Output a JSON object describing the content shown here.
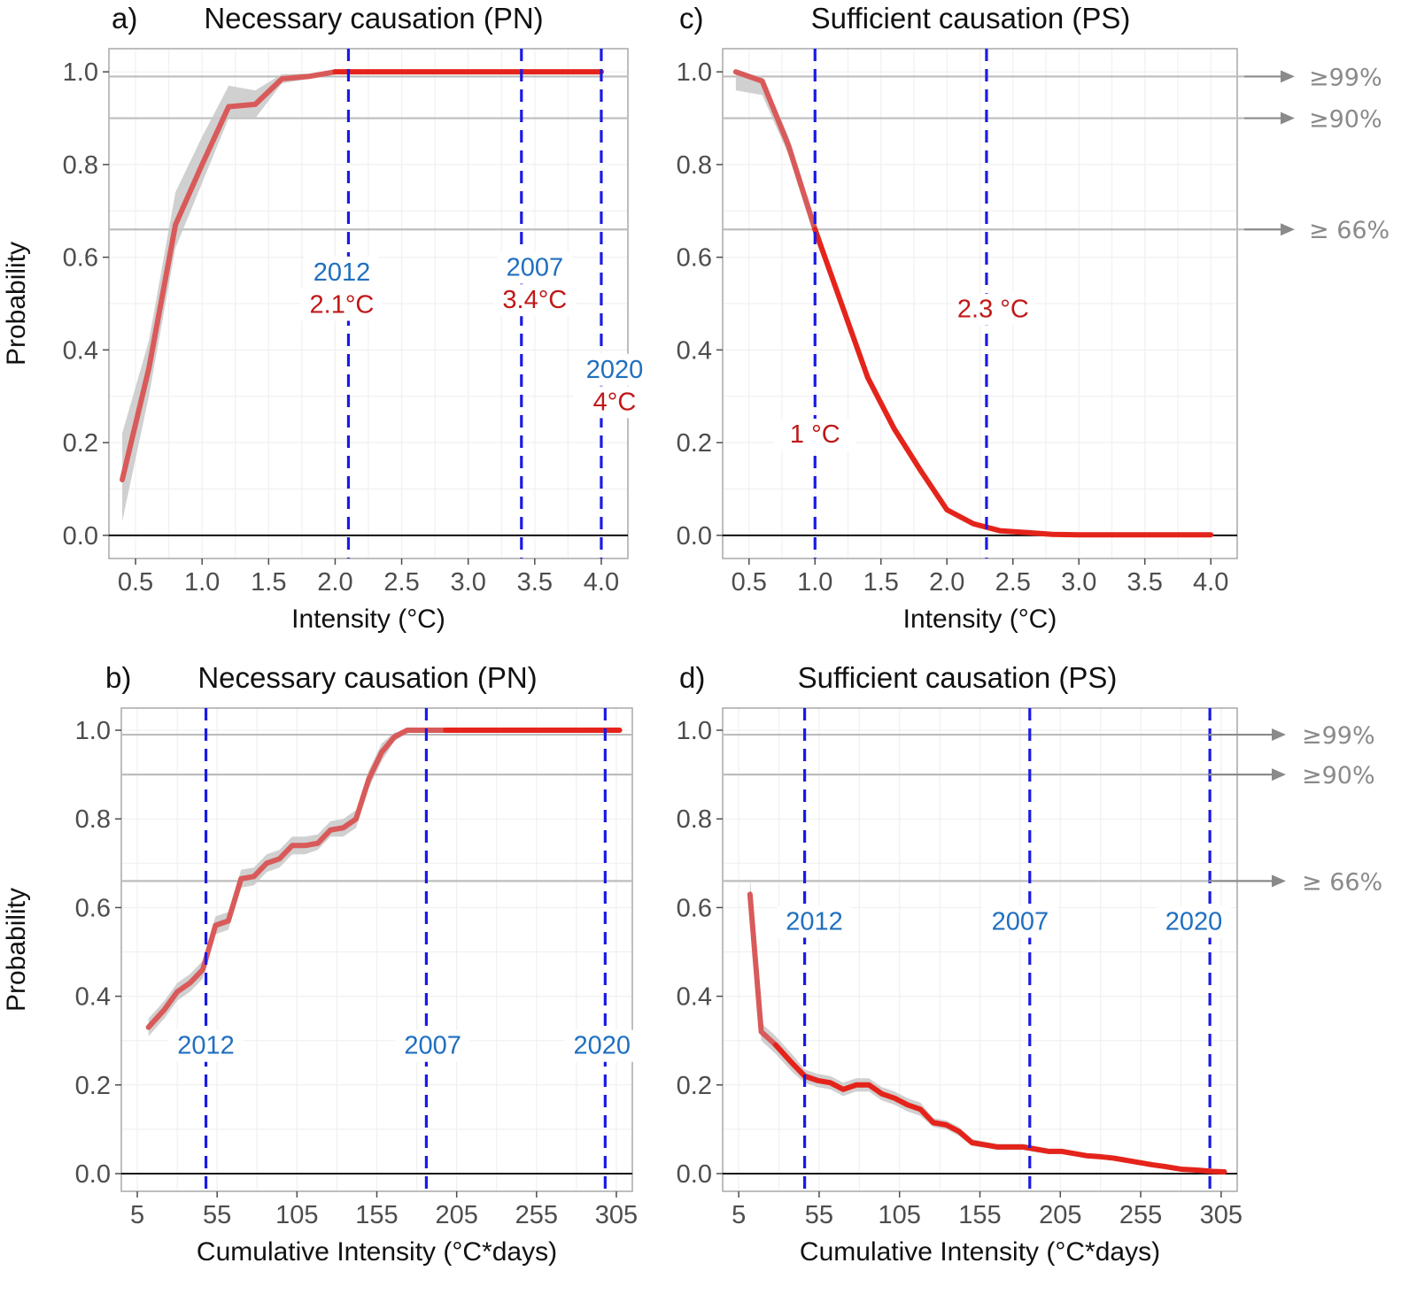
{
  "colors": {
    "line_red": "#e4241b",
    "line_pink": "#d95a5a",
    "ribbon": "#c8c8c8",
    "vline": "#1a1ae6",
    "hline": "#bdbdbd",
    "year_text": "#1f6fc0",
    "temp_text": "#c01818",
    "threshold_text": "#8a8a8a"
  },
  "chart_data": [
    {
      "id": "a",
      "type": "line",
      "panel_label": "a)",
      "title": "Necessary causation (PN)",
      "xlabel": "Intensity (°C)",
      "ylabel": "Probability",
      "xlim": [
        0.3,
        4.2
      ],
      "ylim": [
        -0.05,
        1.05
      ],
      "xticks": [
        0.5,
        1.0,
        1.5,
        2.0,
        2.5,
        3.0,
        3.5,
        4.0
      ],
      "xtick_labels": [
        "0.5",
        "1.0",
        "1.5",
        "2.0",
        "2.5",
        "3.0",
        "3.5",
        "4.0"
      ],
      "yticks": [
        0.0,
        0.2,
        0.4,
        0.6,
        0.8,
        1.0
      ],
      "ytick_labels": [
        "0.0",
        "0.2",
        "0.4",
        "0.6",
        "0.8",
        "1.0"
      ],
      "hlines": [
        0.99,
        0.9,
        0.66
      ],
      "series": [
        {
          "name": "PN",
          "x": [
            0.4,
            0.6,
            0.8,
            1.0,
            1.2,
            1.4,
            1.6,
            1.8,
            2.0,
            2.2,
            2.4,
            2.6,
            2.8,
            3.0,
            3.2,
            3.4,
            3.6,
            3.8,
            4.0
          ],
          "y": [
            0.12,
            0.36,
            0.67,
            0.8,
            0.925,
            0.93,
            0.985,
            0.99,
            1.0,
            1.0,
            1.0,
            1.0,
            1.0,
            1.0,
            1.0,
            1.0,
            1.0,
            1.0,
            1.0
          ],
          "lower": [
            0.03,
            0.3,
            0.62,
            0.76,
            0.9,
            0.9,
            0.975,
            0.985,
            0.997,
            1.0,
            1.0,
            1.0,
            1.0,
            1.0,
            1.0,
            1.0,
            1.0,
            1.0,
            1.0
          ],
          "upper": [
            0.22,
            0.42,
            0.74,
            0.86,
            0.97,
            0.96,
            0.995,
            0.996,
            1.0,
            1.0,
            1.0,
            1.0,
            1.0,
            1.0,
            1.0,
            1.0,
            1.0,
            1.0,
            1.0
          ],
          "split_x": 2.0
        }
      ],
      "vlines": [
        {
          "x": 2.1,
          "year": "2012",
          "value": "2.1°C",
          "lx": 2.05,
          "year_y": 0.55,
          "value_y": 0.48
        },
        {
          "x": 3.4,
          "year": "2007",
          "value": "3.4°C",
          "lx": 3.5,
          "year_y": 0.56,
          "value_y": 0.49
        },
        {
          "x": 4.0,
          "year": "2020",
          "value": "4°C",
          "lx": 4.1,
          "year_y": 0.34,
          "value_y": 0.27
        }
      ],
      "threshold_labels": []
    },
    {
      "id": "c",
      "type": "line",
      "panel_label": "c)",
      "title": "Sufficient  causation (PS)",
      "xlabel": "Intensity (°C)",
      "ylabel": "",
      "xlim": [
        0.3,
        4.2
      ],
      "ylim": [
        -0.05,
        1.05
      ],
      "xticks": [
        0.5,
        1.0,
        1.5,
        2.0,
        2.5,
        3.0,
        3.5,
        4.0
      ],
      "xtick_labels": [
        "0.5",
        "1.0",
        "1.5",
        "2.0",
        "2.5",
        "3.0",
        "3.5",
        "4.0"
      ],
      "yticks": [
        0.0,
        0.2,
        0.4,
        0.6,
        0.8,
        1.0
      ],
      "ytick_labels": [
        "0.0",
        "0.2",
        "0.4",
        "0.6",
        "0.8",
        "1.0"
      ],
      "hlines": [
        0.99,
        0.9,
        0.66
      ],
      "series": [
        {
          "name": "PS",
          "x": [
            0.4,
            0.6,
            0.8,
            1.0,
            1.2,
            1.4,
            1.6,
            1.8,
            2.0,
            2.2,
            2.4,
            2.6,
            2.8,
            3.0,
            3.2,
            3.4,
            3.6,
            3.8,
            4.0
          ],
          "y": [
            1.0,
            0.98,
            0.84,
            0.66,
            0.5,
            0.34,
            0.23,
            0.14,
            0.055,
            0.025,
            0.01,
            0.006,
            0.002,
            0.001,
            0.001,
            0.001,
            0.001,
            0.001,
            0.001
          ],
          "lower": [
            0.96,
            0.95,
            0.82,
            0.64,
            0.49,
            0.33,
            0.22,
            0.13,
            0.05,
            0.02,
            0.008,
            0.004,
            0.001,
            0.0,
            0.0,
            0.0,
            0.0,
            0.0,
            0.0
          ],
          "upper": [
            1.0,
            0.99,
            0.86,
            0.68,
            0.51,
            0.35,
            0.24,
            0.15,
            0.06,
            0.03,
            0.012,
            0.008,
            0.003,
            0.002,
            0.002,
            0.002,
            0.002,
            0.002,
            0.002
          ],
          "split_x": 1.0
        }
      ],
      "vlines": [
        {
          "x": 1.0,
          "year": "",
          "value": "1 °C",
          "lx": 1.0,
          "year_y": null,
          "value_y": 0.2
        },
        {
          "x": 2.3,
          "year": "",
          "value": "2.3 °C",
          "lx": 2.35,
          "year_y": null,
          "value_y": 0.47
        }
      ],
      "threshold_labels": [
        {
          "y": 0.99,
          "text": "≥99%"
        },
        {
          "y": 0.9,
          "text": "≥90%"
        },
        {
          "y": 0.66,
          "text": "≥ 66%"
        }
      ]
    },
    {
      "id": "b",
      "type": "line",
      "panel_label": "b)",
      "title": "Necessary causation (PN)",
      "xlabel": "Cumulative Intensity (°C*days)",
      "ylabel": "Probability",
      "xlim": [
        -5,
        315
      ],
      "ylim": [
        -0.04,
        1.05
      ],
      "xticks": [
        5,
        55,
        105,
        155,
        205,
        255,
        305
      ],
      "xtick_labels": [
        "5",
        "55",
        "105",
        "155",
        "205",
        "255",
        "305"
      ],
      "yticks": [
        0.0,
        0.2,
        0.4,
        0.6,
        0.8,
        1.0
      ],
      "ytick_labels": [
        "0.0",
        "0.2",
        "0.4",
        "0.6",
        "0.8",
        "1.0"
      ],
      "hlines": [
        0.99,
        0.9,
        0.66
      ],
      "series": [
        {
          "name": "PN",
          "x": [
            12,
            22,
            30,
            38,
            46,
            54,
            62,
            70,
            78,
            86,
            94,
            102,
            110,
            118,
            126,
            134,
            142,
            150,
            158,
            166,
            174,
            182,
            190,
            198,
            206,
            214,
            230,
            250,
            270,
            290,
            307
          ],
          "y": [
            0.33,
            0.37,
            0.41,
            0.43,
            0.46,
            0.56,
            0.57,
            0.665,
            0.67,
            0.7,
            0.71,
            0.74,
            0.74,
            0.745,
            0.775,
            0.78,
            0.8,
            0.89,
            0.95,
            0.985,
            1.0,
            1.0,
            1.0,
            1.0,
            1.0,
            1.0,
            1.0,
            1.0,
            1.0,
            1.0,
            1.0
          ],
          "lower": [
            0.31,
            0.35,
            0.39,
            0.41,
            0.44,
            0.54,
            0.55,
            0.645,
            0.65,
            0.68,
            0.69,
            0.72,
            0.72,
            0.73,
            0.76,
            0.76,
            0.78,
            0.87,
            0.93,
            0.975,
            0.995,
            1.0,
            1.0,
            1.0,
            1.0,
            1.0,
            1.0,
            1.0,
            1.0,
            1.0,
            1.0
          ],
          "upper": [
            0.35,
            0.39,
            0.43,
            0.45,
            0.48,
            0.58,
            0.59,
            0.685,
            0.69,
            0.72,
            0.73,
            0.76,
            0.76,
            0.765,
            0.795,
            0.8,
            0.82,
            0.91,
            0.97,
            0.995,
            1.0,
            1.0,
            1.0,
            1.0,
            1.0,
            1.0,
            1.0,
            1.0,
            1.0,
            1.0,
            1.0
          ],
          "split_x": 198
        }
      ],
      "vlines": [
        {
          "x": 48,
          "year": "2012",
          "value": "",
          "lx": 48,
          "year_y": 0.27,
          "value_y": null
        },
        {
          "x": 186,
          "year": "2007",
          "value": "",
          "lx": 190,
          "year_y": 0.27,
          "value_y": null
        },
        {
          "x": 298,
          "year": "2020",
          "value": "",
          "lx": 296,
          "year_y": 0.27,
          "value_y": null
        }
      ],
      "threshold_labels": []
    },
    {
      "id": "d",
      "type": "line",
      "panel_label": "d)",
      "title": "Sufficient  causation (PS)",
      "xlabel": "Cumulative Intensity (°C*days)",
      "ylabel": "",
      "xlim": [
        -5,
        315
      ],
      "ylim": [
        -0.04,
        1.05
      ],
      "xticks": [
        5,
        55,
        105,
        155,
        205,
        255,
        305
      ],
      "xtick_labels": [
        "5",
        "55",
        "105",
        "155",
        "205",
        "255",
        "305"
      ],
      "yticks": [
        0.0,
        0.2,
        0.4,
        0.6,
        0.8,
        1.0
      ],
      "ytick_labels": [
        "0.0",
        "0.2",
        "0.4",
        "0.6",
        "0.8",
        "1.0"
      ],
      "hlines": [
        0.99,
        0.9,
        0.66
      ],
      "series": [
        {
          "name": "PS",
          "x": [
            12,
            19,
            28,
            38,
            46,
            54,
            62,
            70,
            78,
            86,
            94,
            102,
            110,
            118,
            126,
            134,
            142,
            150,
            158,
            166,
            174,
            182,
            190,
            198,
            206,
            214,
            222,
            230,
            238,
            246,
            254,
            262,
            270,
            280,
            290,
            300,
            307
          ],
          "y": [
            0.63,
            0.32,
            0.29,
            0.25,
            0.22,
            0.21,
            0.205,
            0.19,
            0.2,
            0.2,
            0.18,
            0.17,
            0.155,
            0.145,
            0.115,
            0.11,
            0.095,
            0.07,
            0.065,
            0.06,
            0.06,
            0.06,
            0.055,
            0.05,
            0.05,
            0.045,
            0.04,
            0.038,
            0.035,
            0.03,
            0.025,
            0.02,
            0.016,
            0.01,
            0.008,
            0.005,
            0.004
          ],
          "lower": [
            0.6,
            0.3,
            0.27,
            0.23,
            0.205,
            0.195,
            0.19,
            0.175,
            0.185,
            0.185,
            0.165,
            0.155,
            0.14,
            0.13,
            0.105,
            0.1,
            0.085,
            0.062,
            0.058,
            0.053,
            0.053,
            0.053,
            0.048,
            0.044,
            0.044,
            0.04,
            0.035,
            0.033,
            0.03,
            0.026,
            0.021,
            0.017,
            0.013,
            0.008,
            0.006,
            0.003,
            0.002
          ],
          "upper": [
            0.67,
            0.34,
            0.31,
            0.27,
            0.235,
            0.225,
            0.22,
            0.205,
            0.215,
            0.215,
            0.195,
            0.185,
            0.17,
            0.16,
            0.125,
            0.12,
            0.105,
            0.078,
            0.072,
            0.067,
            0.067,
            0.067,
            0.062,
            0.056,
            0.056,
            0.05,
            0.045,
            0.043,
            0.04,
            0.034,
            0.029,
            0.023,
            0.019,
            0.012,
            0.01,
            0.007,
            0.006
          ],
          "split_x": 20
        }
      ],
      "vlines": [
        {
          "x": 46,
          "year": "2012",
          "value": "",
          "lx": 52,
          "year_y": 0.55,
          "value_y": null
        },
        {
          "x": 186,
          "year": "2007",
          "value": "",
          "lx": 180,
          "year_y": 0.55,
          "value_y": null
        },
        {
          "x": 298,
          "year": "2020",
          "value": "",
          "lx": 288,
          "year_y": 0.55,
          "value_y": null
        }
      ],
      "threshold_labels": [
        {
          "y": 0.99,
          "text": "≥99%"
        },
        {
          "y": 0.9,
          "text": "≥90%"
        },
        {
          "y": 0.66,
          "text": "≥ 66%"
        }
      ]
    }
  ]
}
